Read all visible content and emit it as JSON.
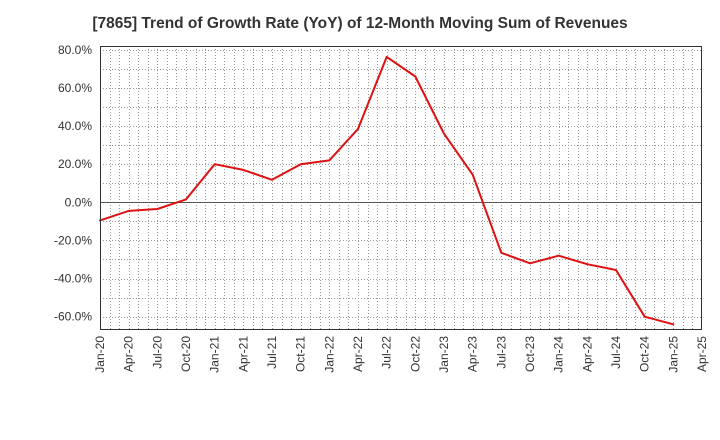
{
  "chart_data": {
    "type": "line",
    "title": "[7865]  Trend of Growth Rate (YoY) of 12-Month Moving Sum of Revenues",
    "xlabel": "",
    "ylabel": "",
    "y_unit": "%",
    "ylim": [
      -67,
      82
    ],
    "yticks": [
      80,
      60,
      40,
      20,
      0,
      -20,
      -40,
      -60
    ],
    "ytick_labels": [
      "80.0%",
      "60.0%",
      "40.0%",
      "20.0%",
      "0.0%",
      "-20.0%",
      "-40.0%",
      "-60.0%"
    ],
    "xticks": [
      "Jan-20",
      "Apr-20",
      "Jul-20",
      "Oct-20",
      "Jan-21",
      "Apr-21",
      "Jul-21",
      "Oct-21",
      "Jan-22",
      "Apr-22",
      "Jul-22",
      "Oct-22",
      "Jan-23",
      "Apr-23",
      "Jul-23",
      "Oct-23",
      "Jan-24",
      "Apr-24",
      "Jul-24",
      "Oct-24",
      "Jan-25",
      "Apr-25"
    ],
    "grid": true,
    "grid_style": "dotted",
    "zero_line": true,
    "line_color": "#dd1111",
    "series": [
      {
        "x": [
          "Jan-20",
          "Apr-20",
          "Jul-20",
          "Oct-20",
          "Jan-21",
          "Apr-21",
          "Jul-21",
          "Oct-21",
          "Jan-22",
          "Apr-22",
          "Jul-22",
          "Oct-22",
          "Jan-23",
          "Apr-23",
          "Jul-23",
          "Oct-23",
          "Jan-24",
          "Apr-24",
          "Jul-24",
          "Oct-24",
          "Jan-25"
        ],
        "values": [
          -9.5,
          -4.5,
          -3.5,
          1.5,
          20.0,
          17.0,
          11.8,
          20.0,
          22.0,
          38.5,
          76.3,
          66.0,
          36.0,
          14.5,
          -26.5,
          -32.0,
          -28.0,
          -32.5,
          -35.5,
          -60.0,
          -64.0
        ]
      }
    ]
  }
}
